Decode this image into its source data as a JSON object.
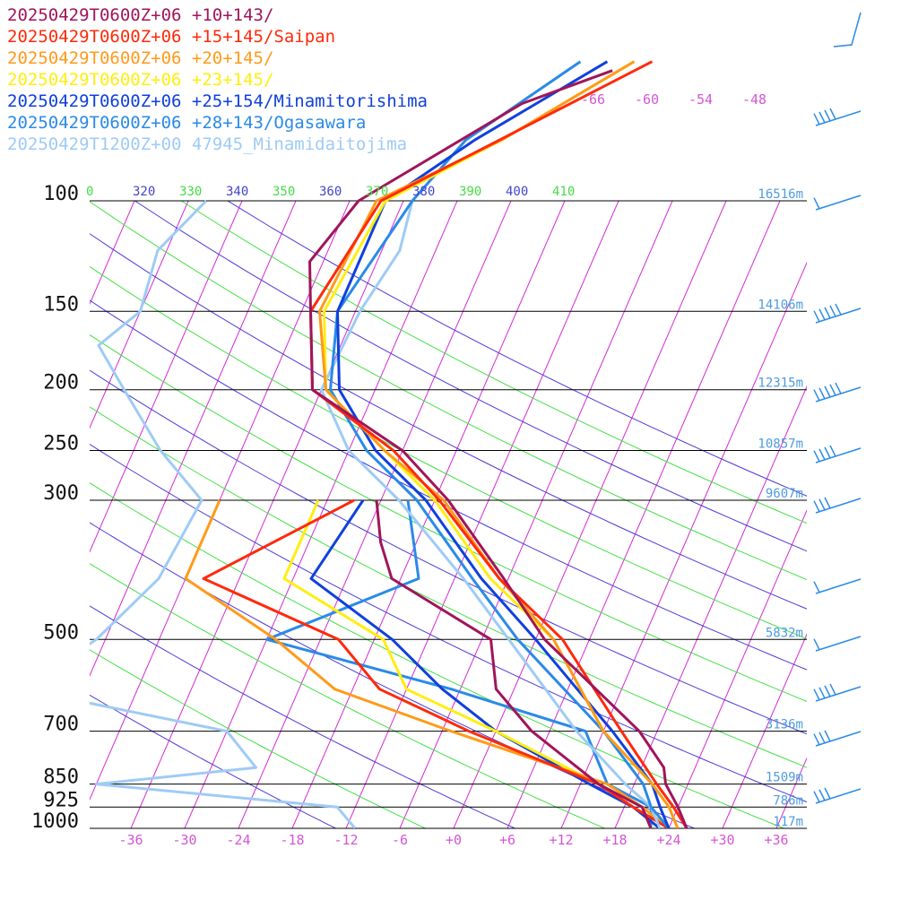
{
  "chart_data": {
    "type": "line",
    "diagram": "skew-T",
    "pressure_levels": [
      100,
      150,
      200,
      250,
      300,
      500,
      700,
      850,
      925,
      1000
    ],
    "heights": [
      {
        "p": 100,
        "label": "16516m"
      },
      {
        "p": 150,
        "label": "14106m"
      },
      {
        "p": 200,
        "label": "12315m"
      },
      {
        "p": 250,
        "label": "10857m"
      },
      {
        "p": 300,
        "label": "9607m"
      },
      {
        "p": 500,
        "label": "5832m"
      },
      {
        "p": 700,
        "label": "3136m"
      },
      {
        "p": 850,
        "label": "1509m"
      },
      {
        "p": 925,
        "label": "786m"
      },
      {
        "p": 1000,
        "label": "117m"
      }
    ],
    "bottom_temp_ticks": [
      {
        "t": -36,
        "label": "-36"
      },
      {
        "t": -30,
        "label": "-30"
      },
      {
        "t": -24,
        "label": "-24"
      },
      {
        "t": -18,
        "label": "-18"
      },
      {
        "t": -12,
        "label": "-12"
      },
      {
        "t": -6,
        "label": "-6"
      },
      {
        "t": 0,
        "label": "+0"
      },
      {
        "t": 6,
        "label": "+6"
      },
      {
        "t": 12,
        "label": "+12"
      },
      {
        "t": 18,
        "label": "+18"
      },
      {
        "t": 24,
        "label": "+24"
      },
      {
        "t": 30,
        "label": "+30"
      },
      {
        "t": 36,
        "label": "+36"
      }
    ],
    "top_temp_labels": [
      "-66",
      "-60",
      "-54",
      "-48"
    ],
    "theta_labels": [
      {
        "value": "0",
        "color": "#44dd44"
      },
      {
        "value": "320",
        "color": "#4444cc"
      },
      {
        "value": "330",
        "color": "#44dd44"
      },
      {
        "value": "340",
        "color": "#4444cc"
      },
      {
        "value": "350",
        "color": "#44dd44"
      },
      {
        "value": "360",
        "color": "#4444cc"
      },
      {
        "value": "370",
        "color": "#44dd44"
      },
      {
        "value": "380",
        "color": "#4444cc"
      },
      {
        "value": "390",
        "color": "#44dd44"
      },
      {
        "value": "400",
        "color": "#4444cc"
      },
      {
        "value": "410",
        "color": "#44dd44"
      }
    ],
    "series": [
      {
        "name": "20250429T0600Z+06 +10+143/",
        "color": "#a0155a",
        "temperature": [
          [
            62,
            -19
          ],
          [
            70,
            -27.5
          ],
          [
            100,
            -41
          ],
          [
            125,
            -43.5
          ],
          [
            150,
            -41
          ],
          [
            200,
            -37
          ],
          [
            250,
            -24
          ],
          [
            300,
            -16.5
          ],
          [
            400,
            -6.5
          ],
          [
            500,
            1
          ],
          [
            700,
            16
          ],
          [
            800,
            20.5
          ],
          [
            850,
            21.5
          ],
          [
            925,
            24
          ],
          [
            1000,
            26
          ]
        ],
        "dewpoint": [
          [
            300,
            -24.5
          ],
          [
            350,
            -22
          ],
          [
            400,
            -19
          ],
          [
            500,
            -5
          ],
          [
            600,
            -2
          ],
          [
            700,
            4
          ],
          [
            850,
            14
          ],
          [
            925,
            20
          ],
          [
            1000,
            22
          ]
        ]
      },
      {
        "name": "20250429T0600Z+06 +15+145/Saipan",
        "color": "#ff2a0a",
        "temperature": [
          [
            60,
            -15
          ],
          [
            100,
            -38.5
          ],
          [
            150,
            -41
          ],
          [
            200,
            -37
          ],
          [
            250,
            -25
          ],
          [
            300,
            -17.5
          ],
          [
            400,
            -7
          ],
          [
            500,
            3
          ],
          [
            700,
            14
          ],
          [
            850,
            20.5
          ],
          [
            925,
            23.5
          ],
          [
            1000,
            26
          ]
        ],
        "dewpoint": [
          [
            300,
            -27
          ],
          [
            400,
            -40
          ],
          [
            500,
            -22
          ],
          [
            600,
            -15
          ],
          [
            700,
            -3
          ],
          [
            850,
            14
          ],
          [
            925,
            19
          ],
          [
            1000,
            24
          ]
        ]
      },
      {
        "name": "20250429T0600Z+06 +20+145/",
        "color": "#ff9a1a",
        "temperature": [
          [
            60,
            -17
          ],
          [
            80,
            -28
          ],
          [
            100,
            -39
          ],
          [
            150,
            -40
          ],
          [
            200,
            -35.5
          ],
          [
            250,
            -26
          ],
          [
            300,
            -17
          ],
          [
            400,
            -7
          ],
          [
            500,
            2
          ],
          [
            700,
            12
          ],
          [
            850,
            20
          ],
          [
            925,
            23
          ],
          [
            1000,
            25
          ]
        ],
        "dewpoint": [
          [
            300,
            -42
          ],
          [
            400,
            -42
          ],
          [
            500,
            -29
          ],
          [
            600,
            -20
          ],
          [
            700,
            -5
          ],
          [
            850,
            15
          ],
          [
            925,
            20
          ],
          [
            1000,
            24
          ]
        ]
      },
      {
        "name": "20250429T0600Z+06 +23+145/",
        "color": "#ffee10",
        "temperature": [
          [
            60,
            -17
          ],
          [
            80,
            -28
          ],
          [
            100,
            -38
          ],
          [
            150,
            -39.5
          ],
          [
            200,
            -35.5
          ],
          [
            250,
            -26
          ],
          [
            300,
            -18
          ],
          [
            400,
            -8
          ],
          [
            500,
            2
          ],
          [
            700,
            12
          ],
          [
            850,
            20
          ],
          [
            925,
            23
          ],
          [
            1000,
            25
          ]
        ],
        "dewpoint": [
          [
            300,
            -31
          ],
          [
            400,
            -31
          ],
          [
            500,
            -17
          ],
          [
            600,
            -12
          ],
          [
            700,
            0
          ],
          [
            850,
            14
          ],
          [
            925,
            20
          ],
          [
            1000,
            24
          ]
        ]
      },
      {
        "name": "20250429T0600Z+06 +25+154/Minamitorishima",
        "color": "#1040dd",
        "temperature": [
          [
            60,
            -20
          ],
          [
            80,
            -31
          ],
          [
            100,
            -38
          ],
          [
            150,
            -38
          ],
          [
            200,
            -34
          ],
          [
            250,
            -27
          ],
          [
            300,
            -19
          ],
          [
            400,
            -9
          ],
          [
            500,
            0
          ],
          [
            700,
            13
          ],
          [
            850,
            20
          ],
          [
            925,
            22
          ],
          [
            1000,
            24
          ]
        ],
        "dewpoint": [
          [
            300,
            -26
          ],
          [
            400,
            -28
          ],
          [
            500,
            -16
          ],
          [
            600,
            -8
          ],
          [
            700,
            0
          ],
          [
            850,
            13
          ],
          [
            925,
            19
          ],
          [
            1000,
            23
          ]
        ]
      },
      {
        "name": "20250429T0600Z+06 +28+143/Ogasawara",
        "color": "#2a8ae8",
        "temperature": [
          [
            60,
            -23
          ],
          [
            80,
            -32
          ],
          [
            100,
            -35
          ],
          [
            150,
            -38
          ],
          [
            200,
            -35
          ],
          [
            250,
            -28
          ],
          [
            300,
            -20
          ],
          [
            400,
            -10
          ],
          [
            500,
            -2
          ],
          [
            700,
            12
          ],
          [
            850,
            19
          ],
          [
            925,
            21
          ],
          [
            1000,
            24
          ]
        ],
        "dewpoint": [
          [
            300,
            -21
          ],
          [
            400,
            -16
          ],
          [
            500,
            -30
          ],
          [
            600,
            -7
          ],
          [
            700,
            10
          ],
          [
            850,
            15
          ],
          [
            925,
            21
          ],
          [
            1000,
            22
          ]
        ]
      },
      {
        "name": "20250429T1200Z+00 47945_Minamidaitojima",
        "color": "#9ecbf5",
        "temperature": [
          [
            100,
            -35
          ],
          [
            120,
            -34
          ],
          [
            150,
            -35.5
          ],
          [
            200,
            -36
          ],
          [
            250,
            -30
          ],
          [
            300,
            -22
          ],
          [
            400,
            -11
          ],
          [
            500,
            -3
          ],
          [
            700,
            9
          ],
          [
            850,
            17
          ],
          [
            925,
            21
          ],
          [
            1000,
            23
          ]
        ],
        "dewpoint": [
          [
            100,
            -58
          ],
          [
            120,
            -61
          ],
          [
            150,
            -60
          ],
          [
            170,
            -63
          ],
          [
            200,
            -58
          ],
          [
            250,
            -51
          ],
          [
            300,
            -44
          ],
          [
            400,
            -45
          ],
          [
            500,
            -49
          ],
          [
            600,
            -55
          ],
          [
            700,
            -30
          ],
          [
            800,
            -25
          ],
          [
            850,
            -42
          ],
          [
            925,
            -14
          ],
          [
            1000,
            -11
          ]
        ]
      }
    ]
  }
}
